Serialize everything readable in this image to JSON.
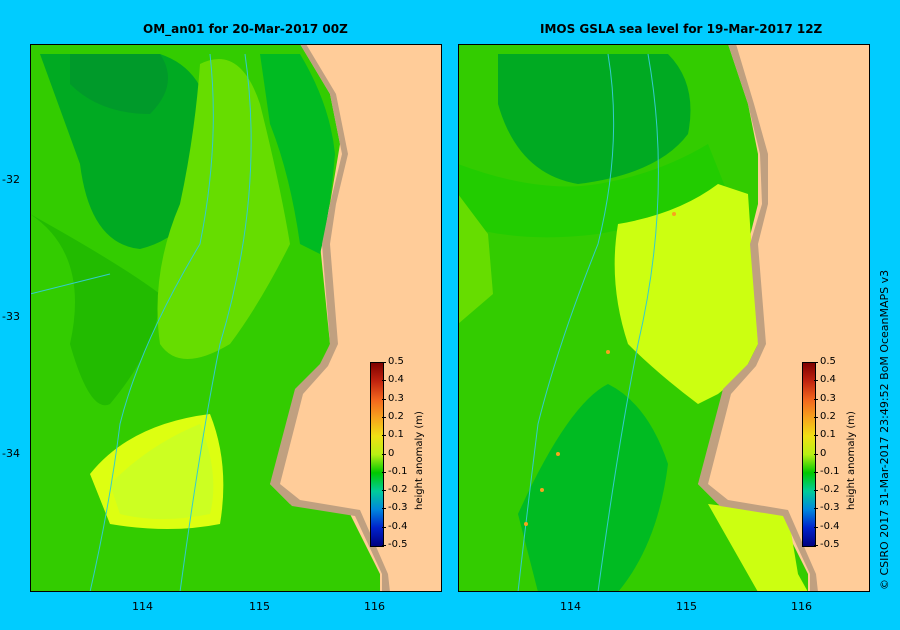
{
  "left_panel": {
    "title": "OM_an01  for 20-Mar-2017 00Z"
  },
  "right_panel": {
    "title": "IMOS GSLA sea level  for 19-Mar-2017 12Z"
  },
  "y_axis_labels": [
    "-32",
    "-33",
    "-34"
  ],
  "x_axis_labels": [
    "114",
    "115",
    "116"
  ],
  "colorbar": {
    "unit_label": "height anomaly (m)",
    "ticks": [
      "0.5",
      "0.4",
      "0.3",
      "0.2",
      "0.1",
      "0",
      "-0.1",
      "-0.2",
      "-0.3",
      "-0.4",
      "-0.5"
    ],
    "colors": [
      "#7f0000",
      "#c1240f",
      "#f2651d",
      "#f7a31d",
      "#f0e014",
      "#b8f014",
      "#00c800",
      "#00cc99",
      "#0088dd",
      "#0022cc",
      "#000080"
    ]
  },
  "credit": "© CSIRO 2017   31-Mar-2017 23:49:52 BoM OceanMAPS v3",
  "colors": {
    "land": "#ffcc99",
    "coast": "#c0a080",
    "dark_green": "#00aa22",
    "green": "#22cc00",
    "light_green": "#66dd00",
    "yellow_green": "#ccff11",
    "isobath": "#33cccc",
    "background": "#00ccff"
  }
}
